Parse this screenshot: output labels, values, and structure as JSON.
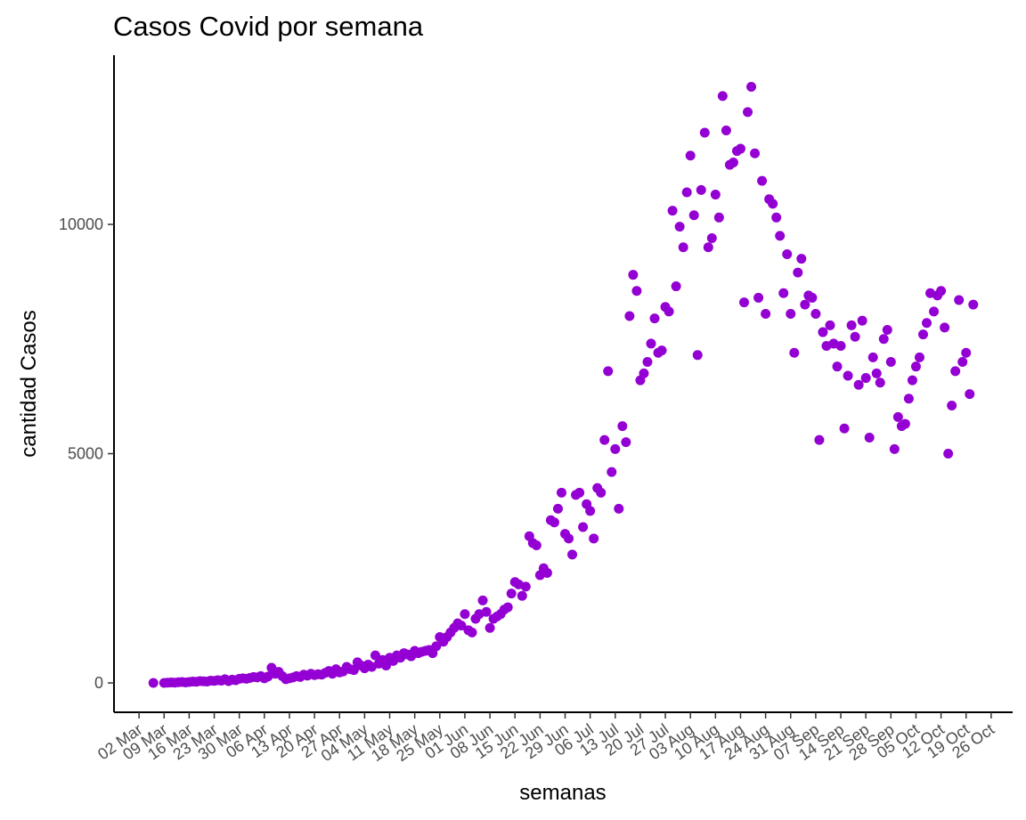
{
  "chart_data": {
    "type": "scatter",
    "title": "Casos Covid por semana",
    "x_label": "semanas",
    "y_label": "cantidad Casos",
    "color": "#9400d3",
    "xlim": [
      "24 Feb",
      "01 Nov"
    ],
    "xticks": [
      "02 Mar",
      "09 Mar",
      "16 Mar",
      "23 Mar",
      "30 Mar",
      "06 Apr",
      "13 Apr",
      "20 Apr",
      "27 Apr",
      "04 May",
      "11 May",
      "18 May",
      "25 May",
      "01 Jun",
      "08 Jun",
      "15 Jun",
      "22 Jun",
      "29 Jun",
      "06 Jul",
      "13 Jul",
      "20 Jul",
      "27 Jul",
      "03 Aug",
      "10 Aug",
      "17 Aug",
      "24 Aug",
      "31 Aug",
      "07 Sep",
      "14 Sep",
      "21 Sep",
      "28 Sep",
      "05 Oct",
      "12 Oct",
      "19 Oct",
      "26 Oct"
    ],
    "ylim": [
      -640,
      13690
    ],
    "yticks": [
      0,
      5000,
      10000
    ],
    "x": [
      "06 Mar",
      "09 Mar",
      "10 Mar",
      "11 Mar",
      "12 Mar",
      "13 Mar",
      "14 Mar",
      "15 Mar",
      "16 Mar",
      "17 Mar",
      "18 Mar",
      "19 Mar",
      "20 Mar",
      "21 Mar",
      "22 Mar",
      "23 Mar",
      "24 Mar",
      "25 Mar",
      "26 Mar",
      "27 Mar",
      "28 Mar",
      "29 Mar",
      "30 Mar",
      "31 Mar",
      "01 Apr",
      "02 Apr",
      "03 Apr",
      "04 Apr",
      "05 Apr",
      "06 Apr",
      "07 Apr",
      "08 Apr",
      "09 Apr",
      "10 Apr",
      "11 Apr",
      "12 Apr",
      "13 Apr",
      "14 Apr",
      "15 Apr",
      "16 Apr",
      "17 Apr",
      "18 Apr",
      "19 Apr",
      "20 Apr",
      "21 Apr",
      "22 Apr",
      "23 Apr",
      "24 Apr",
      "25 Apr",
      "26 Apr",
      "27 Apr",
      "28 Apr",
      "29 Apr",
      "30 Apr",
      "01 May",
      "02 May",
      "03 May",
      "04 May",
      "05 May",
      "06 May",
      "07 May",
      "08 May",
      "09 May",
      "10 May",
      "11 May",
      "12 May",
      "13 May",
      "14 May",
      "15 May",
      "16 May",
      "17 May",
      "18 May",
      "19 May",
      "20 May",
      "21 May",
      "22 May",
      "23 May",
      "24 May",
      "25 May",
      "26 May",
      "27 May",
      "28 May",
      "29 May",
      "30 May",
      "31 May",
      "01 Jun",
      "02 Jun",
      "03 Jun",
      "04 Jun",
      "05 Jun",
      "06 Jun",
      "07 Jun",
      "08 Jun",
      "09 Jun",
      "10 Jun",
      "11 Jun",
      "12 Jun",
      "13 Jun",
      "14 Jun",
      "15 Jun",
      "16 Jun",
      "17 Jun",
      "18 Jun",
      "19 Jun",
      "20 Jun",
      "21 Jun",
      "22 Jun",
      "23 Jun",
      "24 Jun",
      "25 Jun",
      "26 Jun",
      "27 Jun",
      "28 Jun",
      "29 Jun",
      "30 Jun",
      "01 Jul",
      "02 Jul",
      "03 Jul",
      "04 Jul",
      "05 Jul",
      "06 Jul",
      "07 Jul",
      "08 Jul",
      "09 Jul",
      "10 Jul",
      "11 Jul",
      "12 Jul",
      "13 Jul",
      "14 Jul",
      "15 Jul",
      "16 Jul",
      "17 Jul",
      "18 Jul",
      "19 Jul",
      "20 Jul",
      "21 Jul",
      "22 Jul",
      "23 Jul",
      "24 Jul",
      "25 Jul",
      "26 Jul",
      "27 Jul",
      "28 Jul",
      "29 Jul",
      "30 Jul",
      "31 Jul",
      "01 Aug",
      "02 Aug",
      "03 Aug",
      "04 Aug",
      "05 Aug",
      "06 Aug",
      "07 Aug",
      "08 Aug",
      "09 Aug",
      "10 Aug",
      "11 Aug",
      "12 Aug",
      "13 Aug",
      "14 Aug",
      "15 Aug",
      "16 Aug",
      "17 Aug",
      "18 Aug",
      "19 Aug",
      "20 Aug",
      "21 Aug",
      "22 Aug",
      "23 Aug",
      "24 Aug",
      "25 Aug",
      "26 Aug",
      "27 Aug",
      "28 Aug",
      "29 Aug",
      "30 Aug",
      "31 Aug",
      "01 Sep",
      "02 Sep",
      "03 Sep",
      "04 Sep",
      "05 Sep",
      "06 Sep",
      "07 Sep",
      "08 Sep",
      "09 Sep",
      "10 Sep",
      "11 Sep",
      "12 Sep",
      "13 Sep",
      "14 Sep",
      "15 Sep",
      "16 Sep",
      "17 Sep",
      "18 Sep",
      "19 Sep",
      "20 Sep",
      "21 Sep",
      "22 Sep",
      "23 Sep",
      "24 Sep",
      "25 Sep",
      "26 Sep",
      "27 Sep",
      "28 Sep",
      "29 Sep",
      "30 Sep",
      "01 Oct",
      "02 Oct",
      "03 Oct",
      "04 Oct",
      "05 Oct",
      "06 Oct",
      "07 Oct",
      "08 Oct",
      "09 Oct",
      "10 Oct",
      "11 Oct",
      "12 Oct",
      "13 Oct",
      "14 Oct",
      "15 Oct",
      "16 Oct",
      "17 Oct",
      "18 Oct",
      "19 Oct",
      "20 Oct",
      "21 Oct"
    ],
    "values": [
      0,
      0,
      5,
      10,
      5,
      15,
      20,
      10,
      20,
      30,
      25,
      40,
      35,
      30,
      50,
      45,
      60,
      50,
      80,
      40,
      70,
      60,
      90,
      100,
      90,
      110,
      130,
      120,
      150,
      100,
      140,
      330,
      200,
      240,
      150,
      80,
      100,
      120,
      150,
      130,
      180,
      160,
      200,
      170,
      190,
      180,
      220,
      260,
      200,
      300,
      230,
      250,
      350,
      300,
      280,
      450,
      380,
      320,
      400,
      350,
      600,
      420,
      500,
      380,
      550,
      480,
      600,
      550,
      650,
      620,
      580,
      700,
      650,
      680,
      700,
      720,
      650,
      800,
      1000,
      900,
      1000,
      1100,
      1200,
      1300,
      1250,
      1500,
      1150,
      1100,
      1400,
      1500,
      1800,
      1550,
      1200,
      1400,
      1450,
      1500,
      1600,
      1650,
      1950,
      2200,
      2150,
      1900,
      2100,
      3200,
      3050,
      3000,
      2350,
      2500,
      2400,
      3550,
      3500,
      3800,
      4150,
      3250,
      3150,
      2800,
      4100,
      4150,
      3400,
      3900,
      3750,
      3150,
      4250,
      4150,
      5300,
      6800,
      4600,
      5100,
      3800,
      5600,
      5250,
      8000,
      8900,
      8550,
      6600,
      6750,
      7000,
      7400,
      7950,
      7200,
      7250,
      8200,
      8100,
      10300,
      8650,
      9950,
      9500,
      10700,
      11500,
      10200,
      7150,
      10750,
      12000,
      9500,
      9700,
      10650,
      10150,
      12800,
      12050,
      11300,
      11350,
      11600,
      11650,
      8300,
      12450,
      13000,
      11550,
      8400,
      10950,
      8050,
      10550,
      10450,
      10150,
      9750,
      8500,
      9350,
      8050,
      7200,
      8950,
      9250,
      8250,
      8450,
      8400,
      8050,
      5300,
      7650,
      7350,
      7800,
      7400,
      6900,
      7350,
      5550,
      6700,
      7800,
      7550,
      6500,
      7900,
      6650,
      5350,
      7100,
      6750,
      6550,
      7500,
      7700,
      7000,
      5100,
      5800,
      5600,
      5650,
      6200,
      6600,
      6900,
      7100,
      7600,
      7850,
      8500,
      8100,
      8450,
      8550,
      7750,
      5000,
      6050,
      6800,
      8350,
      7000,
      7200,
      6300,
      8250
    ]
  }
}
